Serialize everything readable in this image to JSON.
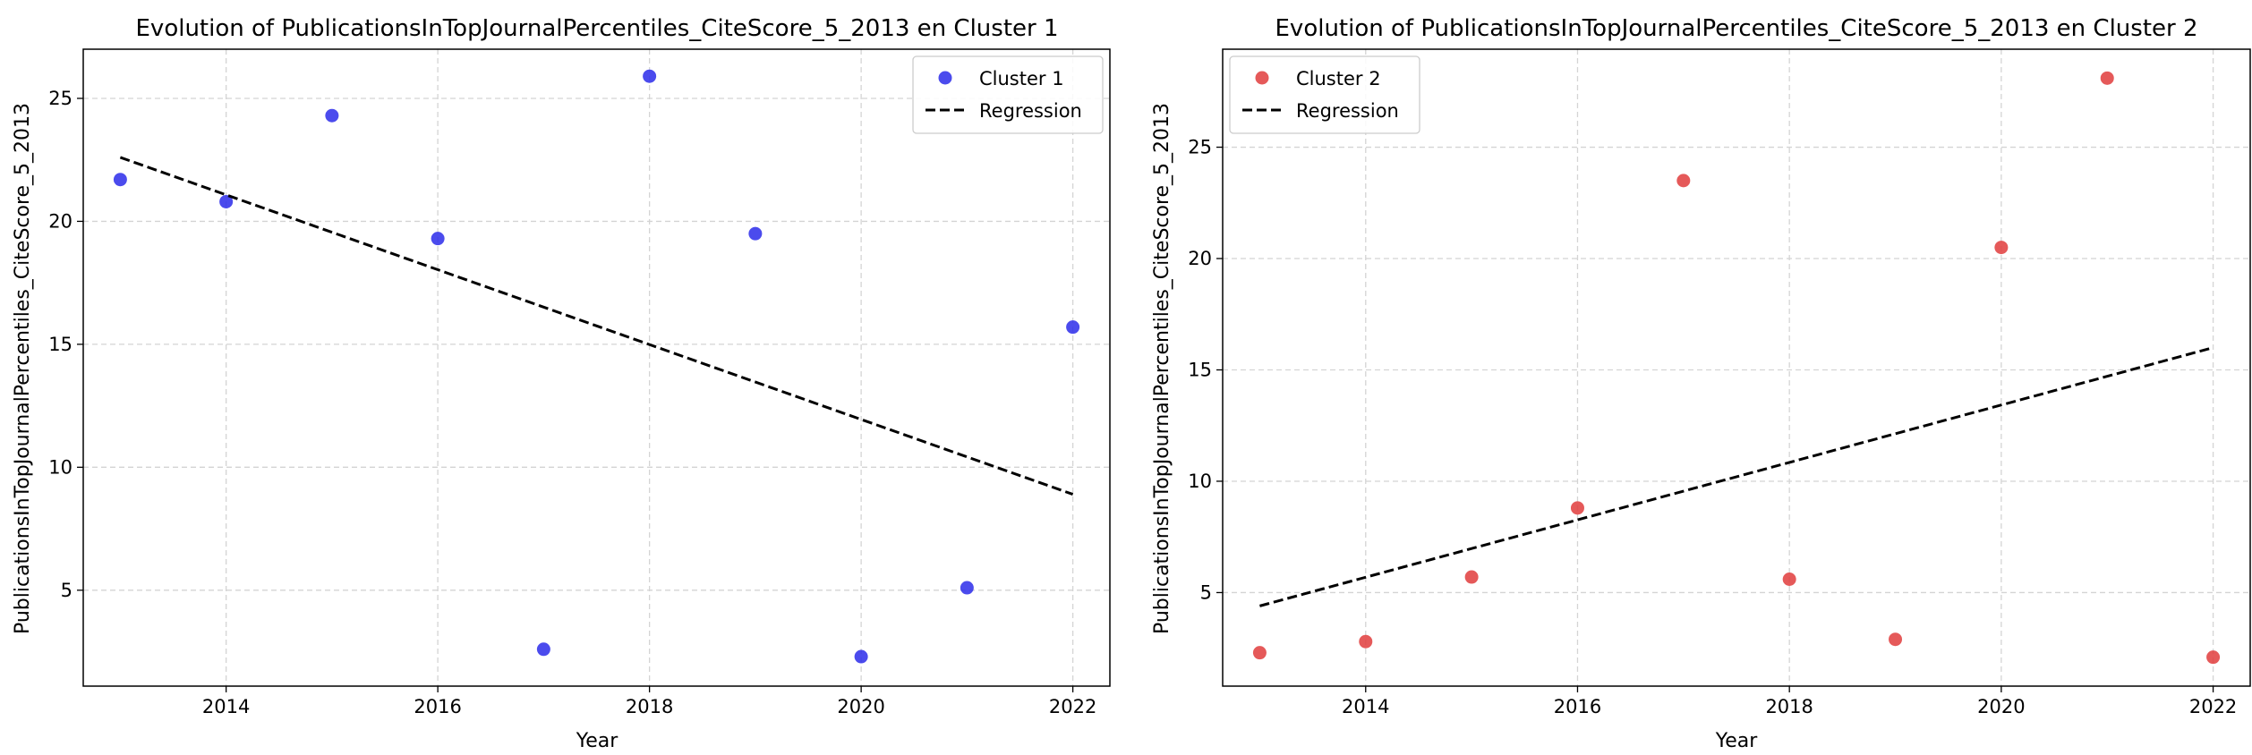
{
  "chart_data": [
    {
      "type": "scatter",
      "title": "Evolution of PublicationsInTopJournalPercentiles_CiteScore_5_2013 en Cluster 1",
      "xlabel": "Year",
      "ylabel": "PublicationsInTopJournalPercentiles_CiteScore_5_2013",
      "xlim": [
        2012.65,
        2022.35
      ],
      "ylim": [
        1.1,
        27.0
      ],
      "xticks": [
        2014,
        2016,
        2018,
        2020,
        2022
      ],
      "yticks": [
        5,
        10,
        15,
        20,
        25
      ],
      "grid": true,
      "legend_position": "top-right",
      "series": [
        {
          "name": "Cluster 1",
          "kind": "scatter",
          "color": "#2b2bea",
          "x": [
            2013,
            2014,
            2015,
            2016,
            2017,
            2018,
            2019,
            2020,
            2021,
            2022
          ],
          "y": [
            21.7,
            20.8,
            24.3,
            19.3,
            2.6,
            25.9,
            19.5,
            2.3,
            5.1,
            15.7
          ]
        },
        {
          "name": "Regression",
          "kind": "line",
          "style": "dashed",
          "color": "#000000",
          "x": [
            2013,
            2022
          ],
          "y": [
            22.6,
            8.9
          ]
        }
      ]
    },
    {
      "type": "scatter",
      "title": "Evolution of PublicationsInTopJournalPercentiles_CiteScore_5_2013 en Cluster 2",
      "xlabel": "Year",
      "ylabel": "PublicationsInTopJournalPercentiles_CiteScore_5_2013",
      "xlim": [
        2012.65,
        2022.35
      ],
      "ylim": [
        0.8,
        29.4
      ],
      "xticks": [
        2014,
        2016,
        2018,
        2020,
        2022
      ],
      "yticks": [
        5,
        10,
        15,
        20,
        25
      ],
      "grid": true,
      "legend_position": "top-left",
      "series": [
        {
          "name": "Cluster 2",
          "kind": "scatter",
          "color": "#e03c3c",
          "x": [
            2013,
            2014,
            2015,
            2016,
            2017,
            2018,
            2019,
            2020,
            2021,
            2022
          ],
          "y": [
            2.3,
            2.8,
            5.7,
            8.8,
            23.5,
            5.6,
            2.9,
            20.5,
            28.1,
            2.1
          ]
        },
        {
          "name": "Regression",
          "kind": "line",
          "style": "dashed",
          "color": "#000000",
          "x": [
            2013,
            2022
          ],
          "y": [
            4.4,
            16.0
          ]
        }
      ]
    }
  ]
}
